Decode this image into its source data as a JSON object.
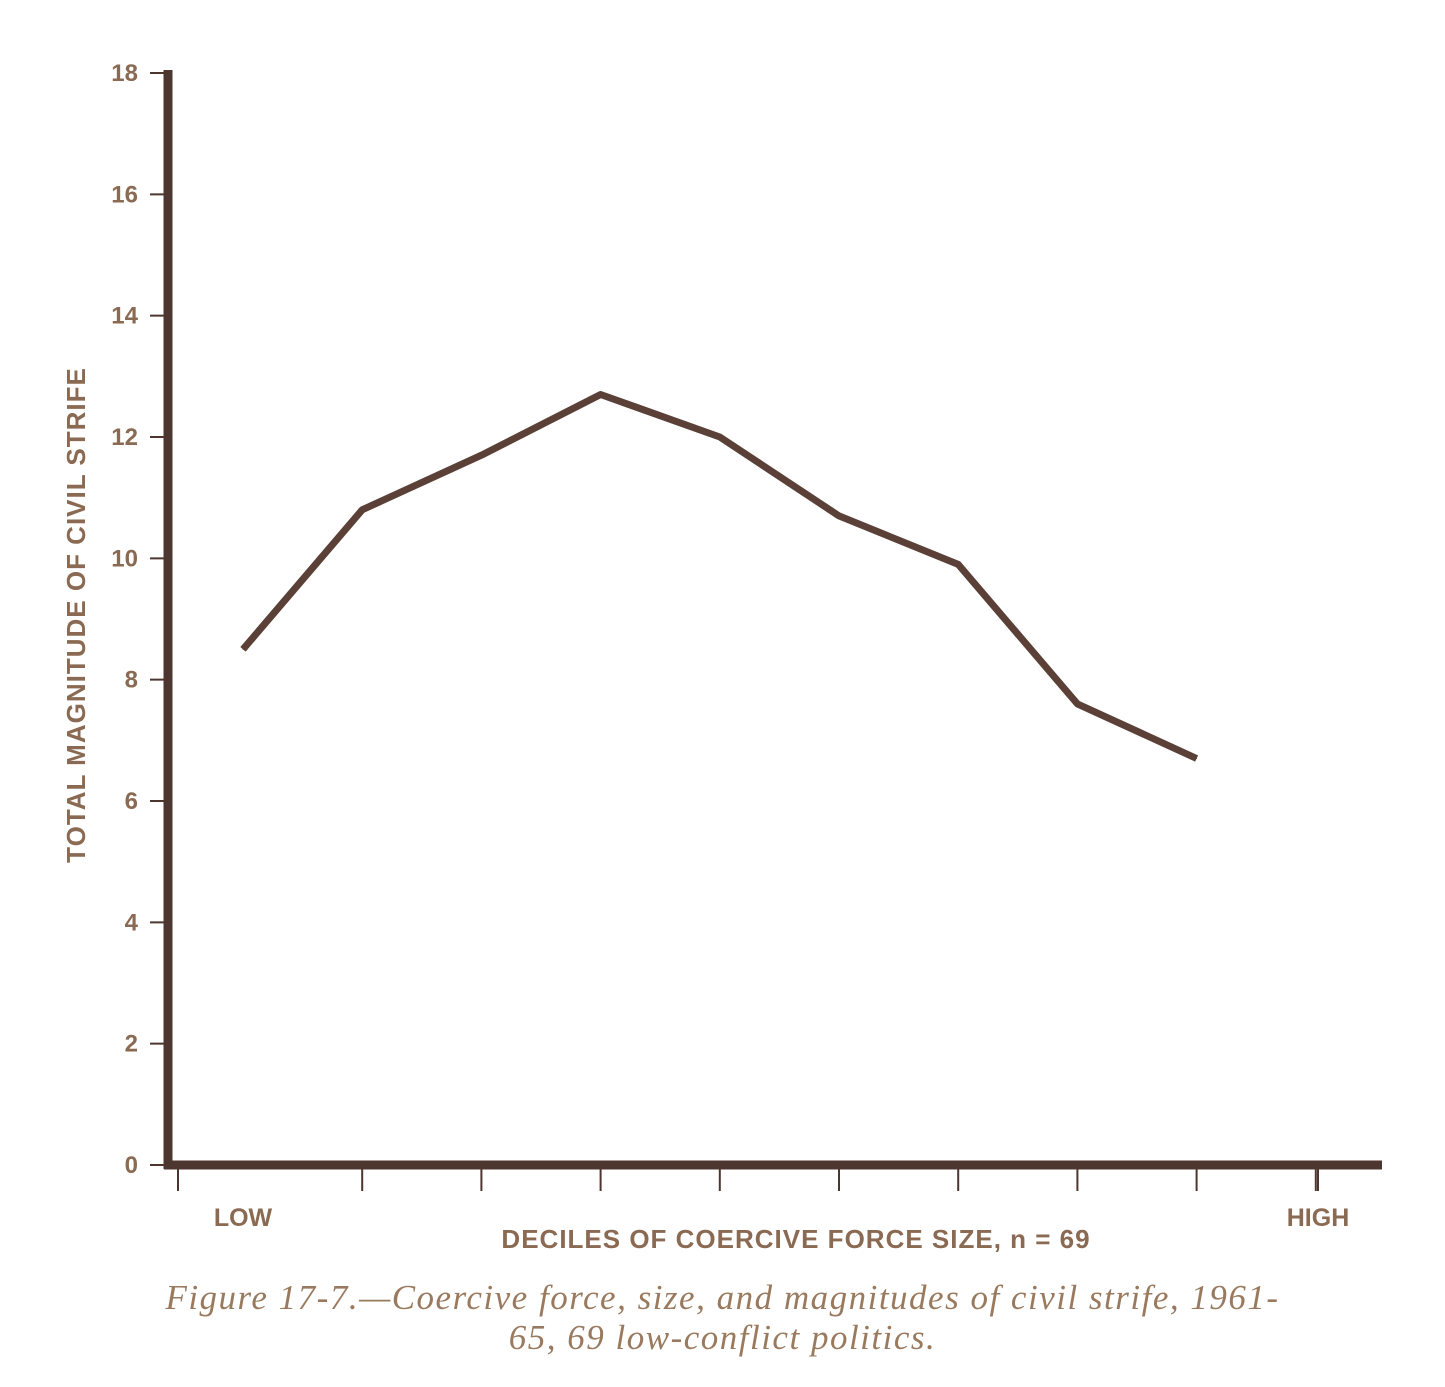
{
  "chart_data": {
    "type": "line",
    "title": "",
    "xlabel": "DECILES OF COERCIVE FORCE SIZE, n = 69",
    "ylabel": "TOTAL MAGNITUDE OF CIVIL STRIFE",
    "ylim": [
      0,
      18
    ],
    "yticks": [
      "0",
      "2",
      "4",
      "6",
      "8",
      "10",
      "12",
      "14",
      "16",
      "18"
    ],
    "x_end_labels": {
      "low": "LOW",
      "high": "HIGH"
    },
    "x": [
      1,
      2,
      3,
      4,
      5,
      6,
      7,
      8,
      9
    ],
    "values": [
      8.5,
      10.8,
      11.7,
      12.7,
      12.0,
      10.7,
      9.9,
      7.6,
      6.7
    ],
    "grid": false,
    "line_color": "#5a4036",
    "axis_color": "#4e3630"
  },
  "caption": {
    "line1": "Figure 17-7.—Coercive force, size, and magnitudes of civil strife, 1961-",
    "line2": "65, 69 low-conflict politics."
  }
}
